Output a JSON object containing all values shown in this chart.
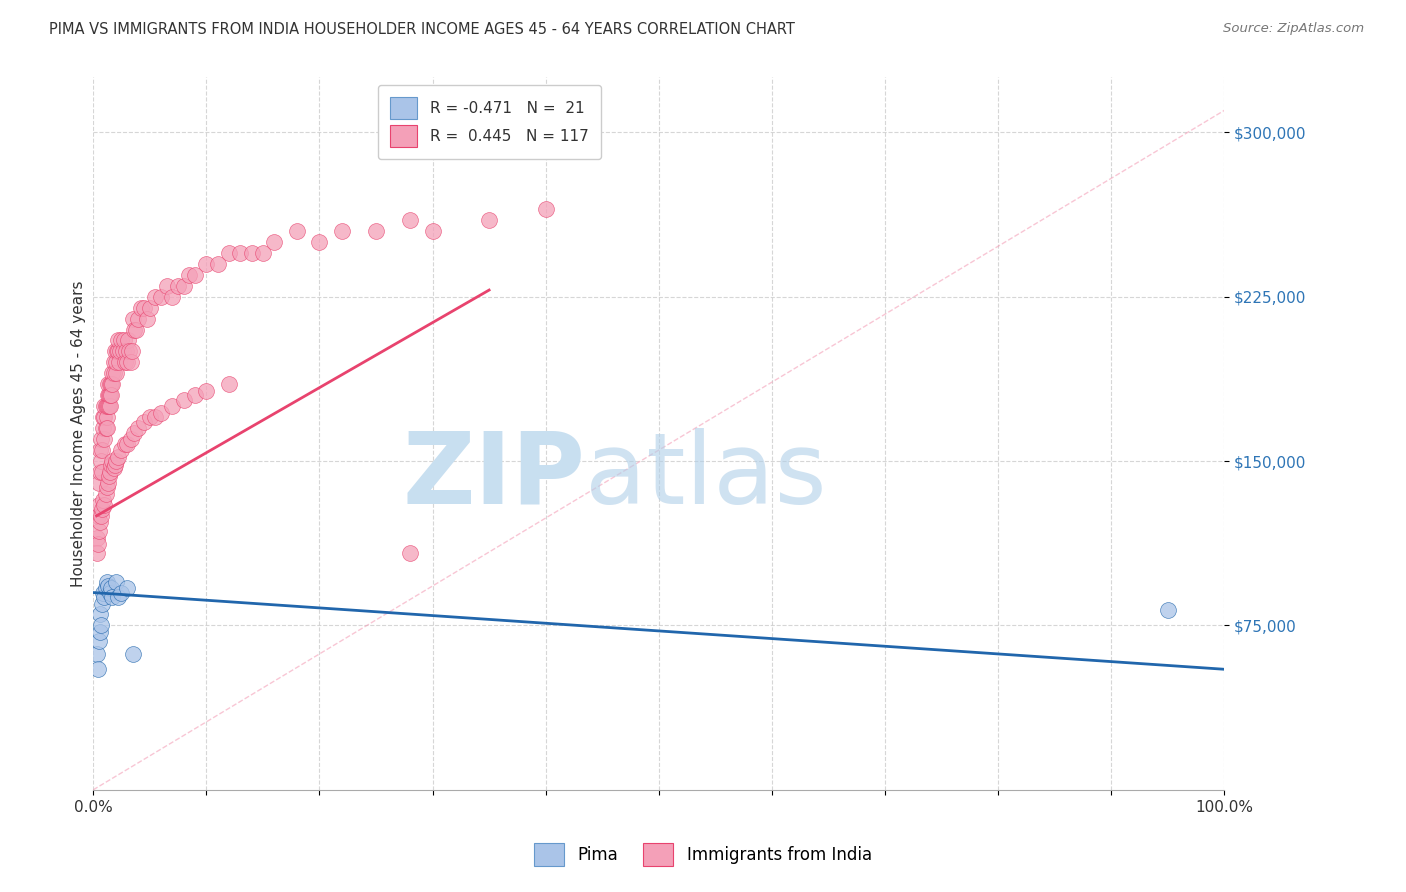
{
  "title": "PIMA VS IMMIGRANTS FROM INDIA HOUSEHOLDER INCOME AGES 45 - 64 YEARS CORRELATION CHART",
  "source": "Source: ZipAtlas.com",
  "ylabel": "Householder Income Ages 45 - 64 years",
  "xlim": [
    0,
    1.0
  ],
  "ylim": [
    0,
    325000
  ],
  "legend1_color": "#aac4e8",
  "legend2_color": "#f4a0b8",
  "trend_blue_color": "#2166ac",
  "trend_pink_color": "#e8436e",
  "dot_blue_color": "#aac4e8",
  "dot_pink_color": "#f4a0b8",
  "background_color": "#ffffff",
  "grid_color": "#cccccc",
  "blue_scatter_x": [
    0.003,
    0.004,
    0.005,
    0.006,
    0.006,
    0.007,
    0.008,
    0.009,
    0.01,
    0.011,
    0.012,
    0.013,
    0.015,
    0.016,
    0.017,
    0.02,
    0.022,
    0.025,
    0.03,
    0.035,
    0.95
  ],
  "blue_scatter_y": [
    62000,
    55000,
    68000,
    72000,
    80000,
    75000,
    85000,
    90000,
    88000,
    92000,
    95000,
    93000,
    90000,
    92000,
    88000,
    95000,
    88000,
    90000,
    92000,
    62000,
    82000
  ],
  "pink_scatter_x": [
    0.003,
    0.004,
    0.005,
    0.005,
    0.006,
    0.006,
    0.007,
    0.007,
    0.008,
    0.008,
    0.009,
    0.009,
    0.01,
    0.01,
    0.01,
    0.011,
    0.011,
    0.012,
    0.012,
    0.012,
    0.013,
    0.013,
    0.013,
    0.014,
    0.014,
    0.015,
    0.015,
    0.015,
    0.016,
    0.016,
    0.017,
    0.017,
    0.018,
    0.018,
    0.019,
    0.02,
    0.02,
    0.021,
    0.022,
    0.022,
    0.023,
    0.024,
    0.025,
    0.026,
    0.027,
    0.028,
    0.029,
    0.03,
    0.031,
    0.032,
    0.033,
    0.034,
    0.035,
    0.036,
    0.038,
    0.04,
    0.042,
    0.045,
    0.048,
    0.05,
    0.055,
    0.06,
    0.065,
    0.07,
    0.075,
    0.08,
    0.085,
    0.09,
    0.1,
    0.11,
    0.12,
    0.13,
    0.14,
    0.15,
    0.16,
    0.18,
    0.2,
    0.22,
    0.25,
    0.28,
    0.3,
    0.35,
    0.4,
    0.003,
    0.004,
    0.005,
    0.006,
    0.007,
    0.008,
    0.009,
    0.01,
    0.011,
    0.012,
    0.013,
    0.014,
    0.015,
    0.016,
    0.017,
    0.018,
    0.019,
    0.02,
    0.022,
    0.025,
    0.028,
    0.03,
    0.033,
    0.036,
    0.04,
    0.045,
    0.05,
    0.055,
    0.06,
    0.07,
    0.08,
    0.09,
    0.1,
    0.12,
    0.28
  ],
  "pink_scatter_y": [
    115000,
    125000,
    130000,
    140000,
    145000,
    155000,
    150000,
    160000,
    145000,
    155000,
    165000,
    170000,
    160000,
    170000,
    175000,
    165000,
    175000,
    170000,
    165000,
    175000,
    180000,
    175000,
    185000,
    175000,
    180000,
    175000,
    180000,
    185000,
    185000,
    180000,
    190000,
    185000,
    195000,
    190000,
    200000,
    190000,
    195000,
    200000,
    200000,
    205000,
    195000,
    200000,
    205000,
    200000,
    205000,
    195000,
    200000,
    195000,
    205000,
    200000,
    195000,
    200000,
    215000,
    210000,
    210000,
    215000,
    220000,
    220000,
    215000,
    220000,
    225000,
    225000,
    230000,
    225000,
    230000,
    230000,
    235000,
    235000,
    240000,
    240000,
    245000,
    245000,
    245000,
    245000,
    250000,
    255000,
    250000,
    255000,
    255000,
    260000,
    255000,
    260000,
    265000,
    108000,
    112000,
    118000,
    122000,
    125000,
    128000,
    132000,
    130000,
    135000,
    138000,
    140000,
    143000,
    145000,
    148000,
    150000,
    147000,
    148000,
    150000,
    152000,
    155000,
    158000,
    158000,
    160000,
    163000,
    165000,
    168000,
    170000,
    170000,
    172000,
    175000,
    178000,
    180000,
    182000,
    185000,
    108000
  ],
  "blue_trend_x0": 0.0,
  "blue_trend_y0": 90000,
  "blue_trend_x1": 1.0,
  "blue_trend_y1": 55000,
  "pink_trend_x0": 0.003,
  "pink_trend_y0": 125000,
  "pink_trend_x1": 0.35,
  "pink_trend_y1": 228000
}
